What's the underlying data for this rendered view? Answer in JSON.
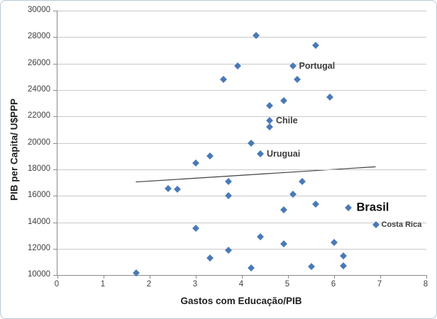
{
  "chart_data": {
    "type": "scatter",
    "title": "",
    "xlabel": "Gastos com Educação/PIB",
    "ylabel": "PIB per Capita/ U$PPP",
    "xlim": [
      0,
      8
    ],
    "ylim": [
      10000,
      30000
    ],
    "xticks": [
      0,
      1,
      2,
      3,
      4,
      5,
      6,
      7,
      8
    ],
    "yticks": [
      10000,
      12000,
      14000,
      16000,
      18000,
      20000,
      22000,
      24000,
      26000,
      28000,
      30000
    ],
    "grid": "horizontal",
    "legend_position": "none",
    "marker": "diamond",
    "marker_color": "#4a79b8",
    "points": [
      {
        "x": 1.7,
        "y": 10200
      },
      {
        "x": 2.4,
        "y": 16550
      },
      {
        "x": 2.6,
        "y": 16500
      },
      {
        "x": 3.0,
        "y": 18500
      },
      {
        "x": 3.0,
        "y": 13550
      },
      {
        "x": 3.3,
        "y": 19000
      },
      {
        "x": 3.3,
        "y": 11300
      },
      {
        "x": 3.6,
        "y": 24800
      },
      {
        "x": 3.7,
        "y": 17100
      },
      {
        "x": 3.7,
        "y": 16000
      },
      {
        "x": 3.7,
        "y": 11900
      },
      {
        "x": 3.9,
        "y": 25800
      },
      {
        "x": 4.2,
        "y": 20000
      },
      {
        "x": 4.2,
        "y": 10550
      },
      {
        "x": 4.3,
        "y": 28100
      },
      {
        "x": 4.4,
        "y": 19200,
        "label": "Uruguai",
        "label_style": "md"
      },
      {
        "x": 4.4,
        "y": 12900
      },
      {
        "x": 4.6,
        "y": 22800
      },
      {
        "x": 4.6,
        "y": 21700,
        "label": "Chile",
        "label_style": "md"
      },
      {
        "x": 4.6,
        "y": 21200
      },
      {
        "x": 4.9,
        "y": 23200
      },
      {
        "x": 4.9,
        "y": 14950
      },
      {
        "x": 4.9,
        "y": 12350
      },
      {
        "x": 5.1,
        "y": 25800,
        "label": "Portugal",
        "label_style": "md"
      },
      {
        "x": 5.1,
        "y": 16100
      },
      {
        "x": 5.2,
        "y": 24800
      },
      {
        "x": 5.3,
        "y": 17100
      },
      {
        "x": 5.5,
        "y": 10650
      },
      {
        "x": 5.6,
        "y": 27350
      },
      {
        "x": 5.6,
        "y": 15350
      },
      {
        "x": 5.9,
        "y": 23450
      },
      {
        "x": 6.0,
        "y": 12500
      },
      {
        "x": 6.2,
        "y": 11450
      },
      {
        "x": 6.2,
        "y": 10700
      },
      {
        "x": 6.3,
        "y": 15100,
        "label": "Brasil",
        "label_style": "lg"
      },
      {
        "x": 6.9,
        "y": 13800,
        "label": "Costa Rica",
        "label_style": "sm"
      }
    ],
    "trendline": {
      "x1": 1.7,
      "y1": 17050,
      "x2": 6.9,
      "y2": 18200
    }
  },
  "colors": {
    "marker": "#4a79b8",
    "trend": "#3f3f3f",
    "grid": "#c9c9c9",
    "axis": "#8a8a8a",
    "tick_text": "#404040",
    "border": "#b7c9d6"
  }
}
